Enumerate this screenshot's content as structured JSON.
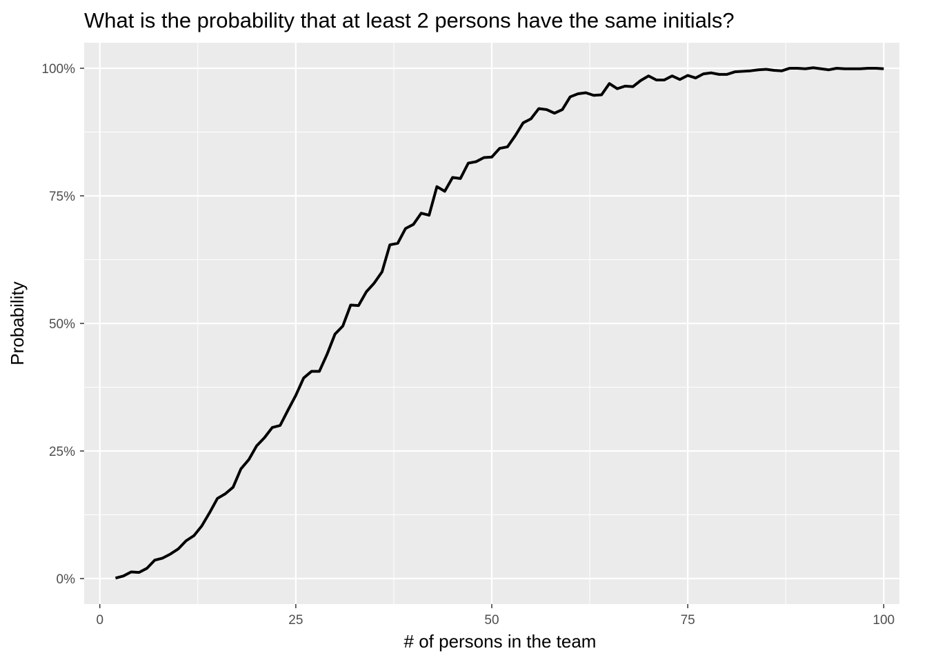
{
  "chart_data": {
    "type": "line",
    "title": "What is the probability that at least 2 persons have the same initials?",
    "xlabel": "# of persons in the team",
    "ylabel": "Probability",
    "xlim": [
      -2,
      102
    ],
    "ylim": [
      -5,
      105
    ],
    "x_ticks": [
      0,
      25,
      50,
      75,
      100
    ],
    "x_tick_labels": [
      "0",
      "25",
      "50",
      "75",
      "100"
    ],
    "y_ticks": [
      0,
      25,
      50,
      75,
      100
    ],
    "y_tick_labels": [
      "0%",
      "25%",
      "50%",
      "75%",
      "100%"
    ],
    "grid": true,
    "panel_background": "#ebebeb",
    "grid_color": "#ffffff",
    "line_color": "#000000",
    "series": [
      {
        "x": [
          2,
          3,
          4,
          5,
          6,
          7,
          8,
          9,
          10,
          11,
          12,
          13,
          14,
          15,
          16,
          17,
          18,
          19,
          20,
          21,
          22,
          23,
          24,
          25,
          26,
          27,
          28,
          29,
          30,
          31,
          32,
          33,
          34,
          35,
          36,
          37,
          38,
          39,
          40,
          41,
          42,
          43,
          44,
          45,
          46,
          47,
          48,
          49,
          50,
          51,
          52,
          53,
          54,
          55,
          56,
          57,
          58,
          59,
          60,
          61,
          62,
          63,
          64,
          65,
          66,
          67,
          68,
          69,
          70,
          71,
          72,
          73,
          74,
          75,
          76,
          77,
          78,
          79,
          80,
          81,
          82,
          83,
          84,
          85,
          86,
          87,
          88,
          89,
          90,
          91,
          92,
          93,
          94,
          95,
          96,
          97,
          98,
          99,
          100
        ],
        "y": [
          0.1,
          0.5,
          1.3,
          1.2,
          2.0,
          3.6,
          4.0,
          4.8,
          5.8,
          7.4,
          8.4,
          10.3,
          12.9,
          15.7,
          16.6,
          17.9,
          21.5,
          23.3,
          26.0,
          27.6,
          29.6,
          30.0,
          33.0,
          35.9,
          39.3,
          40.6,
          40.6,
          44.0,
          47.9,
          49.5,
          53.6,
          53.5,
          56.2,
          57.9,
          60.1,
          65.4,
          65.7,
          68.6,
          69.4,
          71.6,
          71.2,
          76.8,
          75.9,
          78.6,
          78.4,
          81.4,
          81.7,
          82.5,
          82.6,
          84.3,
          84.6,
          86.8,
          89.3,
          90.1,
          92.1,
          91.9,
          91.2,
          91.9,
          94.4,
          95.0,
          95.2,
          94.7,
          94.8,
          97.0,
          96.0,
          96.5,
          96.4,
          97.6,
          98.5,
          97.7,
          97.7,
          98.5,
          97.8,
          98.6,
          98.1,
          98.9,
          99.1,
          98.8,
          98.8,
          99.3,
          99.4,
          99.5,
          99.7,
          99.8,
          99.6,
          99.5,
          100.0,
          100.0,
          99.9,
          100.1,
          99.9,
          99.7,
          100.0,
          99.9,
          99.9,
          99.9,
          100.0,
          100.0,
          99.9
        ]
      }
    ]
  }
}
